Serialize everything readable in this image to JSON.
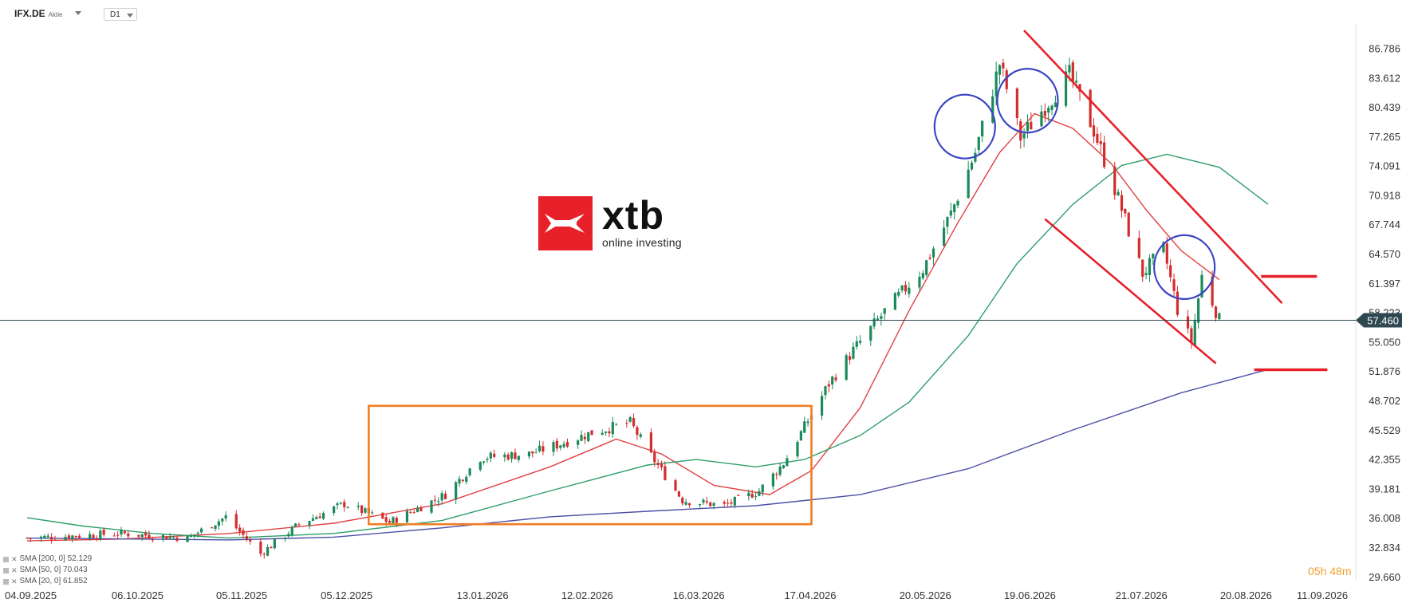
{
  "header": {
    "symbol": "IFX.DE",
    "instrument_type": "Aktie",
    "timeframe": "D1"
  },
  "logo": {
    "word": "xtb",
    "tagline": "online investing"
  },
  "legend": [
    {
      "label": "SMA [200, 0] 52.129",
      "color": "#4c4fa6"
    },
    {
      "label": "SMA [50, 0] 70.043",
      "color": "#2e9e6a"
    },
    {
      "label": "SMA [20, 0] 61.852",
      "color": "#e04040"
    }
  ],
  "countdown": {
    "text": "05h 48m"
  },
  "chart_data": {
    "type": "candlestick",
    "title": "",
    "xlabel": "",
    "ylabel": "",
    "ylim": [
      28.0,
      89.5
    ],
    "yticks": [
      "86.786",
      "83.612",
      "80.439",
      "77.265",
      "74.091",
      "70.918",
      "67.744",
      "64.570",
      "61.397",
      "58.223",
      "55.050",
      "51.876",
      "48.702",
      "45.529",
      "42.355",
      "39.181",
      "36.008",
      "32.834",
      "29.660"
    ],
    "xticks": [
      "04.09.2025",
      "06.10.2025",
      "05.11.2025",
      "05.12.2025",
      "13.01.2026",
      "12.02.2026",
      "16.03.2026",
      "17.04.2026",
      "20.05.2026",
      "19.06.2026",
      "21.07.2026",
      "20.08.2026",
      "11.09.2026"
    ],
    "x_start": "04.09.2025",
    "x_end": "11.09.2026",
    "last_date": "12.08.2026",
    "current_price": "57.460",
    "grid": false,
    "price_path": [
      [
        "04.09.2025",
        33.9
      ],
      [
        "01.10.2025",
        34.4
      ],
      [
        "20.10.2025",
        33.9
      ],
      [
        "31.10.2025",
        36.2
      ],
      [
        "10.11.2025",
        32.2
      ],
      [
        "21.11.2025",
        35.4
      ],
      [
        "04.12.2025",
        37.6
      ],
      [
        "17.12.2025",
        35.6
      ],
      [
        "02.01.2026",
        38.6
      ],
      [
        "12.01.2026",
        42.6
      ],
      [
        "26.01.2026",
        43.0
      ],
      [
        "04.02.2026",
        44.1
      ],
      [
        "13.02.2026",
        45.3
      ],
      [
        "24.02.2026",
        46.4
      ],
      [
        "02.03.2026",
        42.8
      ],
      [
        "11.03.2026",
        38.0
      ],
      [
        "23.03.2026",
        37.4
      ],
      [
        "02.04.2026",
        39.0
      ],
      [
        "09.04.2026",
        42.0
      ],
      [
        "16.04.2026",
        46.6
      ],
      [
        "22.04.2026",
        50.6
      ],
      [
        "29.04.2026",
        54.2
      ],
      [
        "08.05.2026",
        58.4
      ],
      [
        "19.05.2026",
        63.0
      ],
      [
        "27.05.2026",
        69.0
      ],
      [
        "03.06.2026",
        75.6
      ],
      [
        "10.06.2026",
        85.2
      ],
      [
        "16.06.2026",
        77.2
      ],
      [
        "23.06.2026",
        80.6
      ],
      [
        "30.06.2026",
        84.0
      ],
      [
        "07.07.2026",
        78.0
      ],
      [
        "14.07.2026",
        70.6
      ],
      [
        "21.07.2026",
        62.5
      ],
      [
        "27.07.2026",
        65.2
      ],
      [
        "31.07.2026",
        58.6
      ],
      [
        "04.08.2026",
        55.1
      ],
      [
        "07.08.2026",
        62.2
      ],
      [
        "12.08.2026",
        57.5
      ]
    ],
    "series": [
      {
        "name": "SMA [20, 0]",
        "color": "#e04040",
        "points": [
          [
            "04.09.2025",
            33.6
          ],
          [
            "01.10.2025",
            33.8
          ],
          [
            "01.11.2025",
            34.4
          ],
          [
            "01.12.2025",
            35.5
          ],
          [
            "01.01.2026",
            37.6
          ],
          [
            "01.02.2026",
            41.6
          ],
          [
            "20.02.2026",
            44.6
          ],
          [
            "05.03.2026",
            43.0
          ],
          [
            "20.03.2026",
            39.6
          ],
          [
            "05.04.2026",
            38.6
          ],
          [
            "17.04.2026",
            41.2
          ],
          [
            "01.05.2026",
            48.0
          ],
          [
            "15.05.2026",
            58.5
          ],
          [
            "29.05.2026",
            68.0
          ],
          [
            "10.06.2026",
            75.6
          ],
          [
            "20.06.2026",
            79.8
          ],
          [
            "01.07.2026",
            78.2
          ],
          [
            "12.07.2026",
            74.4
          ],
          [
            "22.07.2026",
            69.4
          ],
          [
            "01.08.2026",
            65.0
          ],
          [
            "12.08.2026",
            61.85
          ]
        ]
      },
      {
        "name": "SMA [50, 0]",
        "color": "#2e9e6a",
        "points": [
          [
            "04.09.2025",
            36.1
          ],
          [
            "20.09.2025",
            35.2
          ],
          [
            "10.10.2025",
            34.4
          ],
          [
            "01.11.2025",
            33.9
          ],
          [
            "01.12.2025",
            34.4
          ],
          [
            "01.01.2026",
            35.8
          ],
          [
            "01.02.2026",
            39.0
          ],
          [
            "01.03.2026",
            41.8
          ],
          [
            "15.03.2026",
            42.4
          ],
          [
            "01.04.2026",
            41.6
          ],
          [
            "15.04.2026",
            42.4
          ],
          [
            "01.05.2026",
            45.0
          ],
          [
            "15.05.2026",
            48.6
          ],
          [
            "01.06.2026",
            55.8
          ],
          [
            "15.06.2026",
            63.6
          ],
          [
            "01.07.2026",
            70.0
          ],
          [
            "15.07.2026",
            74.2
          ],
          [
            "28.07.2026",
            75.4
          ],
          [
            "12.08.2026",
            74.0
          ],
          [
            "26.08.2026",
            70.0
          ]
        ]
      },
      {
        "name": "SMA [200, 0]",
        "color": "#4c4fa6",
        "points": [
          [
            "04.09.2025",
            33.9
          ],
          [
            "01.11.2025",
            33.7
          ],
          [
            "01.12.2025",
            34.0
          ],
          [
            "01.01.2026",
            35.0
          ],
          [
            "01.02.2026",
            36.2
          ],
          [
            "01.03.2026",
            36.8
          ],
          [
            "01.04.2026",
            37.4
          ],
          [
            "01.05.2026",
            38.6
          ],
          [
            "01.06.2026",
            41.4
          ],
          [
            "01.07.2026",
            45.6
          ],
          [
            "01.08.2026",
            49.6
          ],
          [
            "26.08.2026",
            52.13
          ]
        ]
      }
    ],
    "annotations": {
      "consolidation_box": {
        "x": [
          "11.12.2025",
          "17.04.2026"
        ],
        "y": [
          35.4,
          48.2
        ],
        "color": "#f07d24"
      },
      "channel_upper": {
        "x": [
          "17.06.2026",
          "30.08.2026"
        ],
        "y": [
          88.8,
          59.3
        ],
        "color": "#e8202a"
      },
      "channel_lower": {
        "x": [
          "23.06.2026",
          "11.08.2026"
        ],
        "y": [
          68.4,
          52.8
        ],
        "color": "#e8202a"
      },
      "level_upper": {
        "x": [
          "24.08.2026",
          "09.09.2026"
        ],
        "y": 62.2,
        "color": "#e8202a"
      },
      "level_lower": {
        "x": [
          "22.08.2026",
          "12.09.2026"
        ],
        "y": 52.1,
        "color": "#e8202a"
      },
      "circles": [
        {
          "x": "31.05.2026",
          "y": 78.4,
          "color": "#3a44c4"
        },
        {
          "x": "18.06.2026",
          "y": 81.2,
          "color": "#3a44c4"
        },
        {
          "x": "02.08.2026",
          "y": 63.2,
          "color": "#3a44c4"
        }
      ]
    }
  }
}
